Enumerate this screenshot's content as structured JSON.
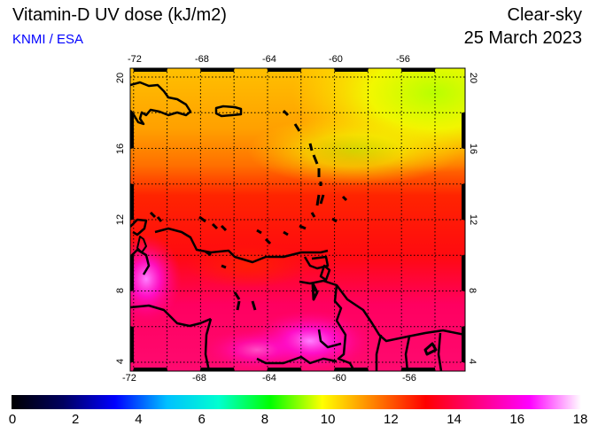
{
  "header": {
    "title": "Vitamin-D UV dose (kJ/m2)",
    "organization": "KNMI / ESA",
    "sky_condition": "Clear-sky",
    "date": "25 March 2023"
  },
  "map": {
    "lon_ticks": [
      "-72",
      "-68",
      "-64",
      "-60",
      "-56"
    ],
    "lat_ticks": [
      "20",
      "16",
      "12",
      "8",
      "4"
    ],
    "lon_range": [
      -72.2,
      -52.2
    ],
    "lat_range": [
      3.5,
      20.5
    ]
  },
  "colorbar": {
    "labels": [
      "0",
      "2",
      "4",
      "6",
      "8",
      "10",
      "12",
      "14",
      "16",
      "18"
    ],
    "min": 0,
    "max": 18,
    "colors": [
      "#000000",
      "#000060",
      "#0000ff",
      "#00c0ff",
      "#00ffd0",
      "#00ff00",
      "#ffff00",
      "#ff8000",
      "#ff0000",
      "#ff0080",
      "#ff00ff",
      "#ffffff"
    ]
  },
  "colors": {
    "organization": "#0000ff"
  }
}
